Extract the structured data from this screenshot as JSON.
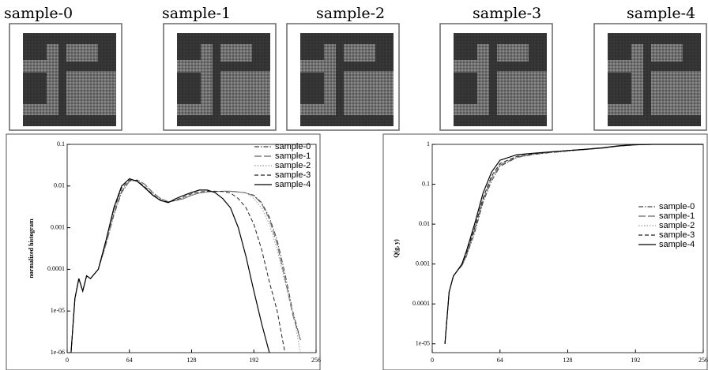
{
  "samples": [
    "sample-0",
    "sample-1",
    "sample-2",
    "sample-3",
    "sample-4"
  ],
  "chart_data": [
    {
      "type": "line",
      "y_label": "normalized histogram",
      "log_y": true,
      "legend": "upper right",
      "xlim": [
        0,
        256
      ],
      "xticks": [
        0,
        64,
        128,
        192,
        256
      ],
      "ylim": [
        1e-06,
        0.1
      ],
      "yticks": [
        0.1,
        0.01,
        0.001,
        0.0001,
        {
          "value": 1e-05,
          "label": "1e-05"
        },
        {
          "value": 1e-06,
          "label": "1e-06"
        }
      ],
      "x": [
        4,
        8,
        12,
        16,
        20,
        24,
        32,
        40,
        48,
        56,
        64,
        72,
        80,
        88,
        96,
        104,
        112,
        120,
        128,
        136,
        144,
        152,
        160,
        168,
        176,
        184,
        192,
        200,
        208,
        216,
        224,
        232,
        240
      ],
      "series": [
        {
          "name": "sample-0",
          "color": "#444",
          "line_style": "dashdot",
          "values": [
            1e-06,
            2e-05,
            6e-05,
            3e-05,
            7e-05,
            6e-05,
            0.0001,
            0.0004,
            0.002,
            0.007,
            0.013,
            0.014,
            0.011,
            0.007,
            0.005,
            0.0042,
            0.0045,
            0.005,
            0.006,
            0.0068,
            0.0072,
            0.0074,
            0.0075,
            0.0075,
            0.0072,
            0.0068,
            0.006,
            0.004,
            0.0018,
            0.0005,
            8e-05,
            1e-05,
            2e-06
          ]
        },
        {
          "name": "sample-1",
          "color": "#666",
          "line_style": "longdash",
          "values": [
            1e-06,
            2e-05,
            6e-05,
            3e-05,
            7e-05,
            6e-05,
            0.0001,
            0.0004,
            0.0022,
            0.0075,
            0.013,
            0.014,
            0.011,
            0.007,
            0.005,
            0.0042,
            0.0045,
            0.005,
            0.006,
            0.0068,
            0.0072,
            0.0074,
            0.0075,
            0.0075,
            0.0072,
            0.0068,
            0.0058,
            0.0038,
            0.0016,
            0.0004,
            6e-05,
            8e-06,
            2e-06
          ]
        },
        {
          "name": "sample-2",
          "color": "#999",
          "line_style": "dotted",
          "values": [
            1e-06,
            2e-05,
            6e-05,
            3e-05,
            7e-05,
            6e-05,
            0.0001,
            0.00045,
            0.0025,
            0.008,
            0.0135,
            0.013,
            0.01,
            0.0065,
            0.0048,
            0.0042,
            0.0046,
            0.0052,
            0.006,
            0.0068,
            0.0072,
            0.0074,
            0.0074,
            0.0073,
            0.0071,
            0.0068,
            0.005,
            0.003,
            0.0012,
            0.0003,
            5e-05,
            1e-05,
            1e-06
          ]
        },
        {
          "name": "sample-3",
          "color": "#222",
          "line_style": "dashed",
          "values": [
            1e-06,
            2e-05,
            6e-05,
            3e-05,
            7e-05,
            6e-05,
            0.0001,
            0.0005,
            0.0028,
            0.009,
            0.014,
            0.0135,
            0.0095,
            0.0062,
            0.0046,
            0.0041,
            0.0046,
            0.0055,
            0.0065,
            0.0072,
            0.0075,
            0.0075,
            0.0074,
            0.0068,
            0.005,
            0.003,
            0.0012,
            0.0003,
            5e-05,
            1e-05,
            1e-06,
            null,
            null
          ]
        },
        {
          "name": "sample-4",
          "color": "#000",
          "line_style": "solid",
          "values": [
            1e-06,
            2e-05,
            6e-05,
            3e-05,
            7e-05,
            6e-05,
            0.0001,
            0.0005,
            0.003,
            0.01,
            0.015,
            0.013,
            0.009,
            0.006,
            0.0045,
            0.004,
            0.005,
            0.006,
            0.007,
            0.008,
            0.008,
            0.007,
            0.005,
            0.003,
            0.001,
            0.0002,
            3e-05,
            5e-06,
            1e-06,
            null,
            null,
            null,
            null
          ]
        }
      ]
    },
    {
      "type": "line",
      "y_label": "Q(g, y)",
      "log_y": true,
      "legend": "center right",
      "xlim": [
        0,
        256
      ],
      "xticks": [
        0,
        64,
        128,
        192,
        256
      ],
      "ylim": [
        6e-06,
        1
      ],
      "yticks": [
        1,
        0.1,
        0.01,
        0.001,
        0.0001,
        {
          "value": 1e-05,
          "label": "1e-05"
        }
      ],
      "x": [
        12,
        16,
        20,
        24,
        28,
        32,
        40,
        48,
        56,
        64,
        80,
        96,
        112,
        128,
        144,
        160,
        176,
        192,
        208,
        224,
        240,
        256
      ],
      "series": [
        {
          "name": "sample-0",
          "color": "#444",
          "line_style": "dashdot",
          "values": [
            1e-05,
            0.0002,
            0.0005,
            0.0007,
            0.0009,
            0.0015,
            0.006,
            0.035,
            0.12,
            0.28,
            0.47,
            0.56,
            0.62,
            0.68,
            0.74,
            0.8,
            0.9,
            0.97,
            1,
            1,
            1,
            1
          ]
        },
        {
          "name": "sample-1",
          "color": "#666",
          "line_style": "longdash",
          "values": [
            1e-05,
            0.0002,
            0.0005,
            0.0007,
            0.0009,
            0.0016,
            0.007,
            0.04,
            0.14,
            0.3,
            0.48,
            0.57,
            0.63,
            0.69,
            0.74,
            0.8,
            0.9,
            0.97,
            1,
            1,
            1,
            1
          ]
        },
        {
          "name": "sample-2",
          "color": "#999",
          "line_style": "dotted",
          "values": [
            1e-05,
            0.0002,
            0.0005,
            0.0007,
            0.001,
            0.0018,
            0.008,
            0.045,
            0.15,
            0.32,
            0.5,
            0.58,
            0.64,
            0.69,
            0.75,
            0.81,
            0.91,
            0.98,
            1,
            1,
            1,
            1
          ]
        },
        {
          "name": "sample-3",
          "color": "#222",
          "line_style": "dashed",
          "values": [
            1e-05,
            0.0002,
            0.0005,
            0.0007,
            0.001,
            0.0018,
            0.008,
            0.045,
            0.16,
            0.33,
            0.5,
            0.58,
            0.64,
            0.7,
            0.75,
            0.81,
            0.91,
            0.98,
            1,
            1,
            1,
            1
          ]
        },
        {
          "name": "sample-4",
          "color": "#000",
          "line_style": "solid",
          "values": [
            1e-05,
            0.0002,
            0.0005,
            0.0007,
            0.001,
            0.002,
            0.01,
            0.06,
            0.2,
            0.4,
            0.55,
            0.6,
            0.65,
            0.7,
            0.75,
            0.82,
            0.92,
            0.98,
            1,
            1,
            1,
            1
          ]
        }
      ]
    }
  ]
}
